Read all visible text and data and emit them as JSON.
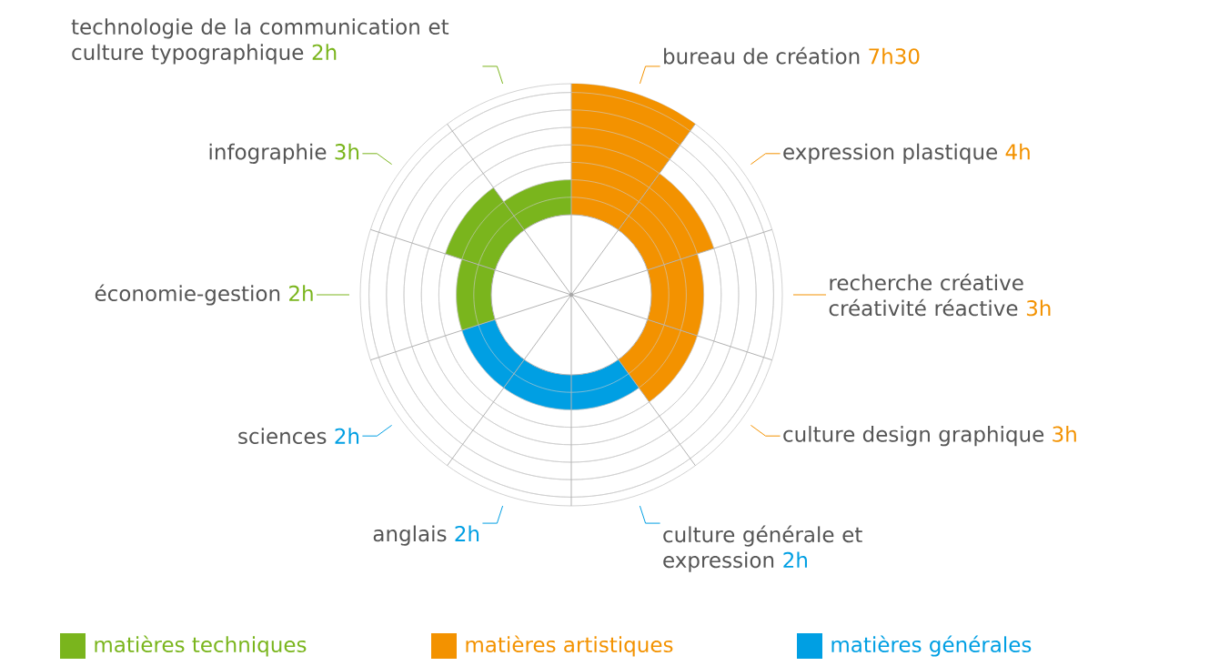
{
  "chart_data": {
    "type": "other",
    "legend": "bottom",
    "categories": [
      "bureau de création",
      "expression plastique",
      "recherche créative créativité réactive",
      "culture design graphique",
      "culture générale et expression",
      "anglais",
      "sciences",
      "économie-gestion",
      "infographie",
      "technologie de la communication et culture typographique"
    ],
    "series": [
      {
        "name": "matières techniques",
        "color": "#7ab51d",
        "values": [
          null,
          null,
          null,
          null,
          null,
          null,
          null,
          2,
          3,
          2
        ],
        "value_labels": [
          null,
          null,
          null,
          null,
          null,
          null,
          null,
          "2h",
          "3h",
          "2h"
        ]
      },
      {
        "name": "matières artistiques",
        "color": "#f39200",
        "values": [
          7.5,
          4,
          3,
          3,
          null,
          null,
          null,
          null,
          null,
          null
        ],
        "value_labels": [
          "7h30",
          "4h",
          "3h",
          "3h",
          null,
          null,
          null,
          null,
          null,
          null
        ]
      },
      {
        "name": "matières générales",
        "color": "#009fe3",
        "values": [
          null,
          null,
          null,
          null,
          2,
          2,
          2,
          null,
          null,
          null
        ],
        "value_labels": [
          null,
          null,
          null,
          null,
          "2h",
          "2h",
          "2h",
          null,
          null,
          null
        ]
      }
    ]
  }
}
